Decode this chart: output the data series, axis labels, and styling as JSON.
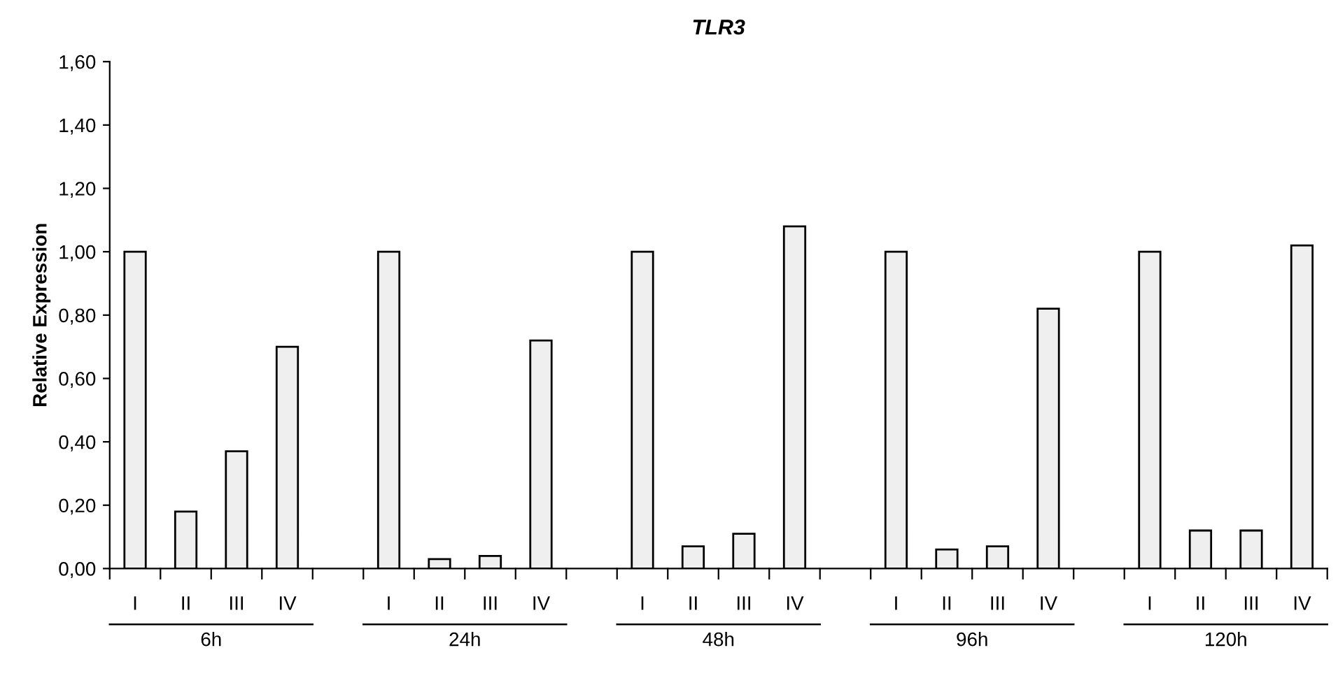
{
  "chart_data": {
    "type": "bar",
    "title": "TLR3",
    "ylabel": "Relative Expression",
    "categories": [
      "I",
      "II",
      "III",
      "IV",
      null,
      "I",
      "II",
      "III",
      "IV",
      null,
      "I",
      "II",
      "III",
      "IV",
      null,
      "I",
      "II",
      "III",
      "IV",
      null,
      "I",
      "II",
      "III",
      "IV"
    ],
    "values": [
      1.0,
      0.18,
      0.37,
      0.7,
      null,
      1.0,
      0.03,
      0.04,
      0.72,
      null,
      1.0,
      0.07,
      0.11,
      1.08,
      null,
      1.0,
      0.06,
      0.07,
      0.82,
      null,
      1.0,
      0.12,
      0.12,
      1.02
    ],
    "color": "#efefef",
    "ylim": [
      0,
      1.6
    ],
    "yticks": [
      {
        "value": 0,
        "label": "0,00"
      },
      {
        "value": 0.2,
        "label": "0,20"
      },
      {
        "value": 0.4,
        "label": "0,40"
      },
      {
        "value": 0.6,
        "label": "0,60"
      },
      {
        "value": 0.8,
        "label": "0,80"
      },
      {
        "value": 1.0,
        "label": "1,00"
      },
      {
        "value": 1.2,
        "label": "1,20"
      },
      {
        "value": 1.4,
        "label": "1,40"
      },
      {
        "value": 1.6,
        "label": "1,60"
      }
    ],
    "annotations": [
      "6h",
      "24h",
      "48h",
      "96h",
      "120h"
    ],
    "grid": false,
    "legend": false
  }
}
